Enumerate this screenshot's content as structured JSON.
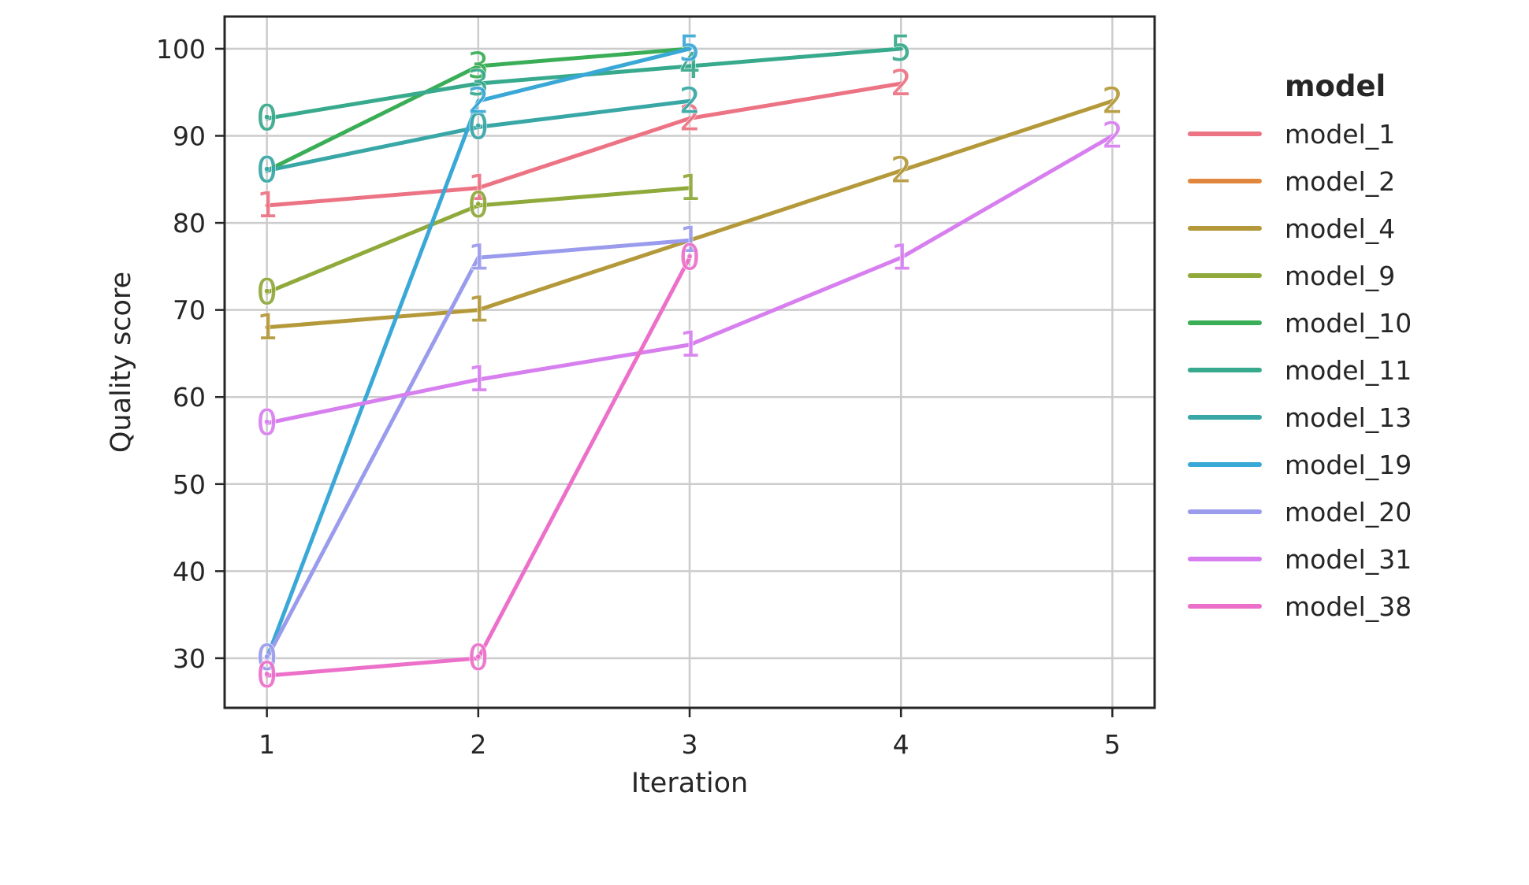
{
  "chart_data": {
    "type": "line",
    "title": "",
    "xlabel": "Iteration",
    "ylabel": "Quality score",
    "x_ticks": [
      1,
      2,
      3,
      4,
      5
    ],
    "y_ticks": [
      30,
      40,
      50,
      60,
      70,
      80,
      90,
      100
    ],
    "xlim": [
      0.8,
      5.2
    ],
    "ylim": [
      24.3,
      103.7
    ],
    "grid": true,
    "legend": {
      "title": "model",
      "placement": "right"
    },
    "series": [
      {
        "name": "model_1",
        "color": "#ec7384",
        "points": [
          {
            "x": 1,
            "y": 82,
            "label": "1"
          },
          {
            "x": 2,
            "y": 84,
            "label": "1"
          },
          {
            "x": 3,
            "y": 92,
            "label": "2"
          },
          {
            "x": 4,
            "y": 96,
            "label": "2"
          }
        ]
      },
      {
        "name": "model_2",
        "color": "#e0873d",
        "points": []
      },
      {
        "name": "model_4",
        "color": "#b4993a",
        "points": [
          {
            "x": 1,
            "y": 68,
            "label": "1"
          },
          {
            "x": 2,
            "y": 70,
            "label": "1"
          },
          {
            "x": 3,
            "y": 78,
            "label": ""
          },
          {
            "x": 4,
            "y": 86,
            "label": "2"
          },
          {
            "x": 5,
            "y": 94,
            "label": "2"
          }
        ]
      },
      {
        "name": "model_9",
        "color": "#8fa93a",
        "points": [
          {
            "x": 1,
            "y": 72,
            "label": "0"
          },
          {
            "x": 2,
            "y": 82,
            "label": "0"
          },
          {
            "x": 3,
            "y": 84,
            "label": "1"
          }
        ]
      },
      {
        "name": "model_10",
        "color": "#3aad57",
        "points": [
          {
            "x": 1,
            "y": 86,
            "label": ""
          },
          {
            "x": 2,
            "y": 98,
            "label": "3"
          },
          {
            "x": 3,
            "y": 100,
            "label": ""
          }
        ]
      },
      {
        "name": "model_11",
        "color": "#37a98c",
        "points": [
          {
            "x": 1,
            "y": 92,
            "label": "0"
          },
          {
            "x": 2,
            "y": 96,
            "label": "3"
          },
          {
            "x": 3,
            "y": 98,
            "label": "4"
          },
          {
            "x": 4,
            "y": 100,
            "label": "5"
          }
        ]
      },
      {
        "name": "model_13",
        "color": "#38a7a6",
        "points": [
          {
            "x": 1,
            "y": 86,
            "label": "0"
          },
          {
            "x": 2,
            "y": 91,
            "label": "0"
          },
          {
            "x": 3,
            "y": 94,
            "label": "2"
          }
        ]
      },
      {
        "name": "model_19",
        "color": "#3aa8d6",
        "points": [
          {
            "x": 1,
            "y": 30,
            "label": ""
          },
          {
            "x": 2,
            "y": 94,
            "label": "2"
          },
          {
            "x": 3,
            "y": 100,
            "label": "5"
          }
        ]
      },
      {
        "name": "model_20",
        "color": "#9b9bed",
        "points": [
          {
            "x": 1,
            "y": 30,
            "label": "0"
          },
          {
            "x": 2,
            "y": 76,
            "label": "1"
          },
          {
            "x": 3,
            "y": 78,
            "label": "1"
          }
        ]
      },
      {
        "name": "model_31",
        "color": "#d77fef",
        "points": [
          {
            "x": 1,
            "y": 57,
            "label": "0"
          },
          {
            "x": 2,
            "y": 62,
            "label": "1"
          },
          {
            "x": 3,
            "y": 66,
            "label": "1"
          },
          {
            "x": 4,
            "y": 76,
            "label": "1"
          },
          {
            "x": 5,
            "y": 90,
            "label": "2"
          }
        ]
      },
      {
        "name": "model_38",
        "color": "#ec70c9",
        "points": [
          {
            "x": 1,
            "y": 28,
            "label": "0"
          },
          {
            "x": 2,
            "y": 30,
            "label": "0"
          },
          {
            "x": 3,
            "y": 76,
            "label": "0"
          }
        ]
      }
    ]
  }
}
